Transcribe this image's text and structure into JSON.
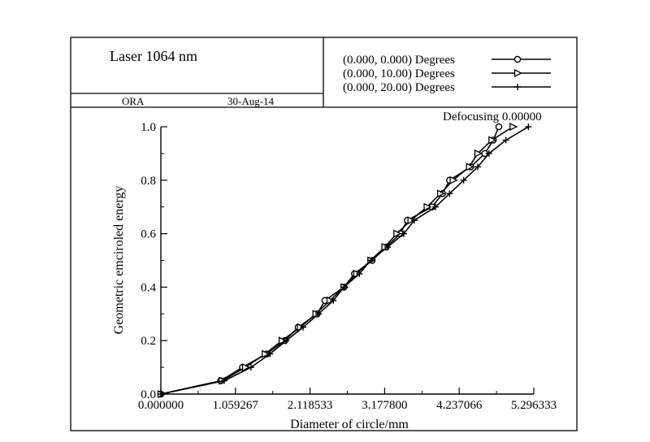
{
  "chart_data": {
    "type": "line",
    "title": "Laser 1064 nm",
    "footer": {
      "left": "ORA",
      "date": "30-Aug-14"
    },
    "annotation": "Defocusing 0.00000",
    "xlabel": "Diameter of circle/mm",
    "ylabel": "Geometric emciroled energy",
    "xlim": [
      0,
      5.296333
    ],
    "ylim": [
      0,
      1.0
    ],
    "x_ticks": [
      0,
      1.059267,
      2.118533,
      3.1778,
      4.237066,
      5.296333
    ],
    "x_tick_labels": [
      "0.000000",
      "1.059267",
      "2.118533",
      "3.177800",
      "4.237066",
      "5.296333"
    ],
    "y_ticks": [
      0,
      0.2,
      0.4,
      0.6,
      0.8,
      1.0
    ],
    "y_tick_labels": [
      "0.0",
      "0.2",
      "0.4",
      "0.6",
      "0.8",
      "1.0"
    ],
    "grid": false,
    "legend_position": "top-right",
    "series": [
      {
        "name": "(0.000, 0.000) Degrees",
        "marker": "circle",
        "points": [
          [
            0,
            0
          ],
          [
            0.85,
            0.05
          ],
          [
            1.16,
            0.1
          ],
          [
            1.5,
            0.15
          ],
          [
            1.76,
            0.2
          ],
          [
            1.95,
            0.25
          ],
          [
            2.22,
            0.3
          ],
          [
            2.33,
            0.35
          ],
          [
            2.6,
            0.4
          ],
          [
            2.75,
            0.45
          ],
          [
            3.0,
            0.5
          ],
          [
            3.2,
            0.55
          ],
          [
            3.4,
            0.6
          ],
          [
            3.5,
            0.65
          ],
          [
            3.85,
            0.7
          ],
          [
            4.0,
            0.75
          ],
          [
            4.1,
            0.8
          ],
          [
            4.4,
            0.85
          ],
          [
            4.6,
            0.9
          ],
          [
            4.72,
            0.95
          ],
          [
            4.8,
            1.0
          ]
        ]
      },
      {
        "name": "(0.000, 10.00) Degrees",
        "marker": "triangle-right",
        "points": [
          [
            0,
            0
          ],
          [
            0.87,
            0.05
          ],
          [
            1.2,
            0.1
          ],
          [
            1.48,
            0.15
          ],
          [
            1.72,
            0.2
          ],
          [
            1.98,
            0.25
          ],
          [
            2.2,
            0.3
          ],
          [
            2.4,
            0.35
          ],
          [
            2.6,
            0.4
          ],
          [
            2.78,
            0.45
          ],
          [
            2.98,
            0.5
          ],
          [
            3.18,
            0.55
          ],
          [
            3.35,
            0.6
          ],
          [
            3.55,
            0.65
          ],
          [
            3.78,
            0.7
          ],
          [
            3.97,
            0.75
          ],
          [
            4.15,
            0.8
          ],
          [
            4.38,
            0.85
          ],
          [
            4.5,
            0.9
          ],
          [
            4.7,
            0.95
          ],
          [
            5.0,
            1.0
          ]
        ]
      },
      {
        "name": "(0.000, 20.00) Degrees",
        "marker": "plus",
        "points": [
          [
            0,
            0
          ],
          [
            0.9,
            0.05
          ],
          [
            1.28,
            0.1
          ],
          [
            1.55,
            0.15
          ],
          [
            1.78,
            0.2
          ],
          [
            2.02,
            0.25
          ],
          [
            2.24,
            0.3
          ],
          [
            2.45,
            0.35
          ],
          [
            2.6,
            0.4
          ],
          [
            2.82,
            0.45
          ],
          [
            2.98,
            0.5
          ],
          [
            3.22,
            0.55
          ],
          [
            3.45,
            0.6
          ],
          [
            3.6,
            0.65
          ],
          [
            3.9,
            0.7
          ],
          [
            4.1,
            0.75
          ],
          [
            4.3,
            0.8
          ],
          [
            4.5,
            0.85
          ],
          [
            4.66,
            0.9
          ],
          [
            4.9,
            0.95
          ],
          [
            5.22,
            1.0
          ]
        ]
      }
    ]
  }
}
